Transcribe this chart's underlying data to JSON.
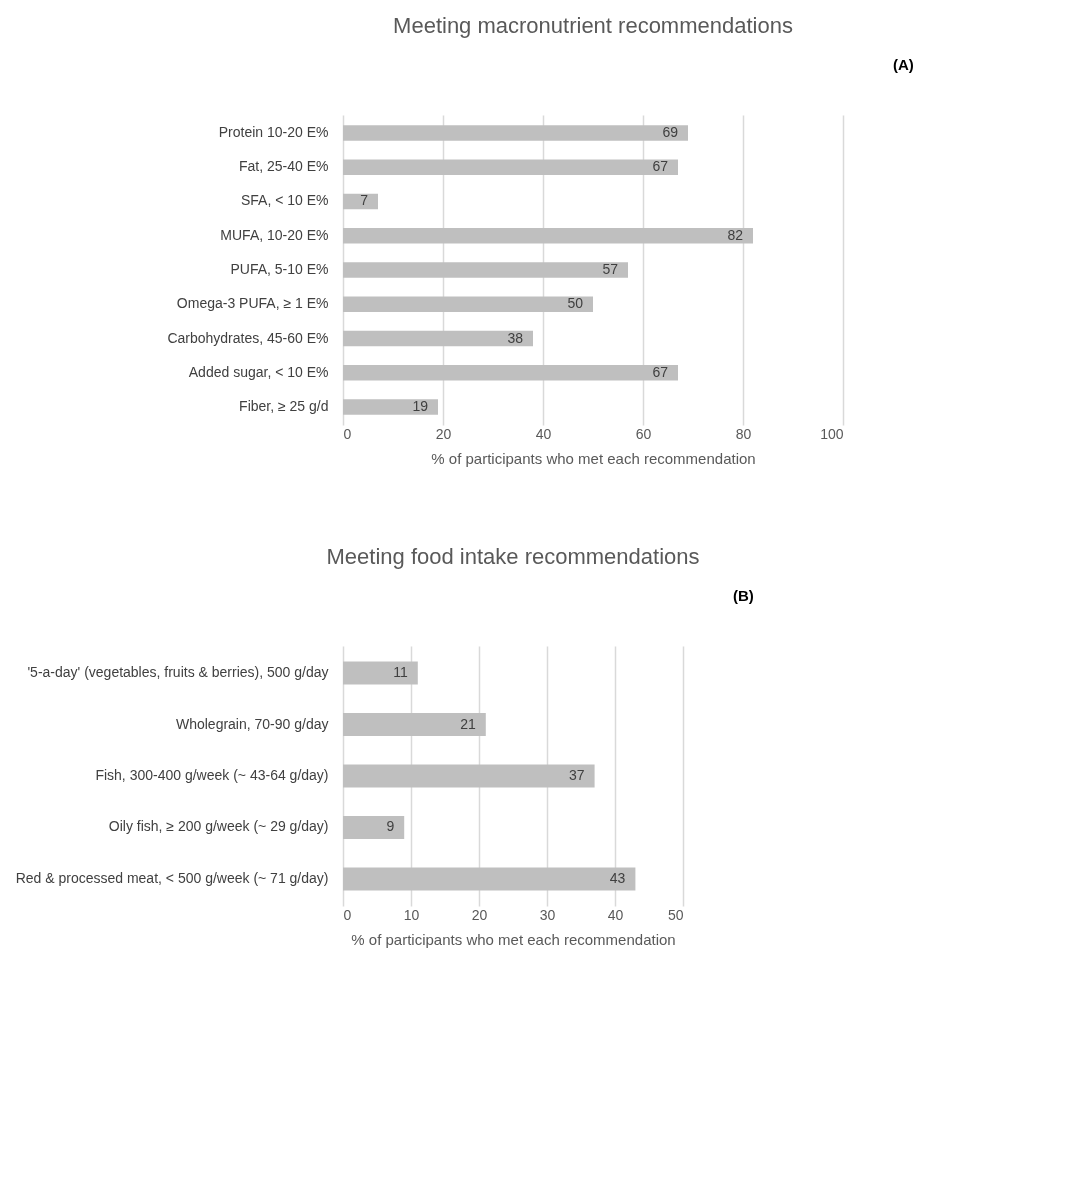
{
  "chart_data": [
    {
      "type": "bar",
      "orientation": "horizontal",
      "title": "Meeting macronutrient recommendations",
      "xlabel": "% of participants who met each recommendation",
      "annotations": [
        "(A)"
      ],
      "categories": [
        "Protein 10-20 E%",
        "Fat, 25-40 E%",
        "SFA, < 10 E%",
        "MUFA, 10-20 E%",
        "PUFA, 5-10 E%",
        "Omega-3 PUFA, ≥ 1 E%",
        "Carbohydrates, 45-60 E%",
        "Added sugar, < 10 E%",
        "Fiber, ≥ 25 g/d"
      ],
      "values": [
        69,
        67,
        7,
        82,
        57,
        50,
        38,
        67,
        19
      ],
      "color": "#bfbfbf",
      "data_labels": true,
      "xlim": [
        0,
        100
      ],
      "xticks": [
        0,
        20,
        40,
        60,
        80,
        100
      ],
      "grid": "x"
    },
    {
      "type": "bar",
      "orientation": "horizontal",
      "title": "Meeting food intake recommendations",
      "xlabel": "% of participants who met each recommendation",
      "annotations": [
        "(B)"
      ],
      "categories": [
        "'5-a-day' (vegetables, fruits & berries), 500 g/day",
        "Wholegrain, 70-90 g/day",
        "Fish, 300-400 g/week (~ 43-64 g/day)",
        "Oily fish, ≥ 200 g/week (~ 29 g/day)",
        "Red & processed meat, < 500 g/week (~ 71 g/day)"
      ],
      "values": [
        11,
        21,
        37,
        9,
        43
      ],
      "color": "#bfbfbf",
      "data_labels": true,
      "xlim": [
        0,
        50
      ],
      "xticks": [
        0,
        10,
        20,
        30,
        40,
        50
      ],
      "grid": "x"
    }
  ]
}
